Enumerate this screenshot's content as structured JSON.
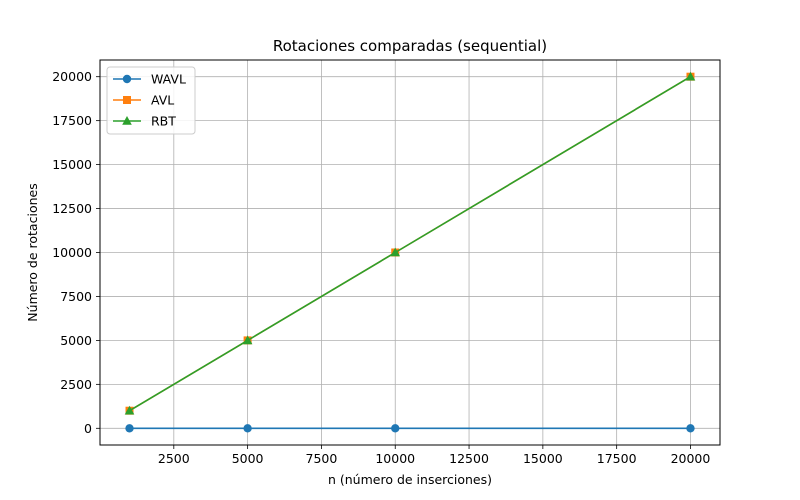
{
  "chart_data": {
    "type": "line",
    "title": "Rotaciones comparadas (sequential)",
    "xlabel": "n (número de inserciones)",
    "ylabel": "Número de rotaciones",
    "x": [
      1000,
      5000,
      10000,
      20000
    ],
    "xlim": [
      0,
      21000
    ],
    "ylim": [
      -950,
      20950
    ],
    "xticks": [
      2500,
      5000,
      7500,
      10000,
      12500,
      15000,
      17500,
      20000
    ],
    "yticks": [
      0,
      2500,
      5000,
      7500,
      10000,
      12500,
      15000,
      17500,
      20000
    ],
    "grid": true,
    "legend_position": "upper-left",
    "series": [
      {
        "name": "WAVL",
        "values": [
          0,
          0,
          0,
          0
        ],
        "color": "#1f77b4",
        "marker": "circle"
      },
      {
        "name": "AVL",
        "values": [
          1000,
          5000,
          10000,
          20000
        ],
        "color": "#ff7f0e",
        "marker": "square"
      },
      {
        "name": "RBT",
        "values": [
          1000,
          5000,
          10000,
          20000
        ],
        "color": "#2ca02c",
        "marker": "triangle"
      }
    ]
  }
}
